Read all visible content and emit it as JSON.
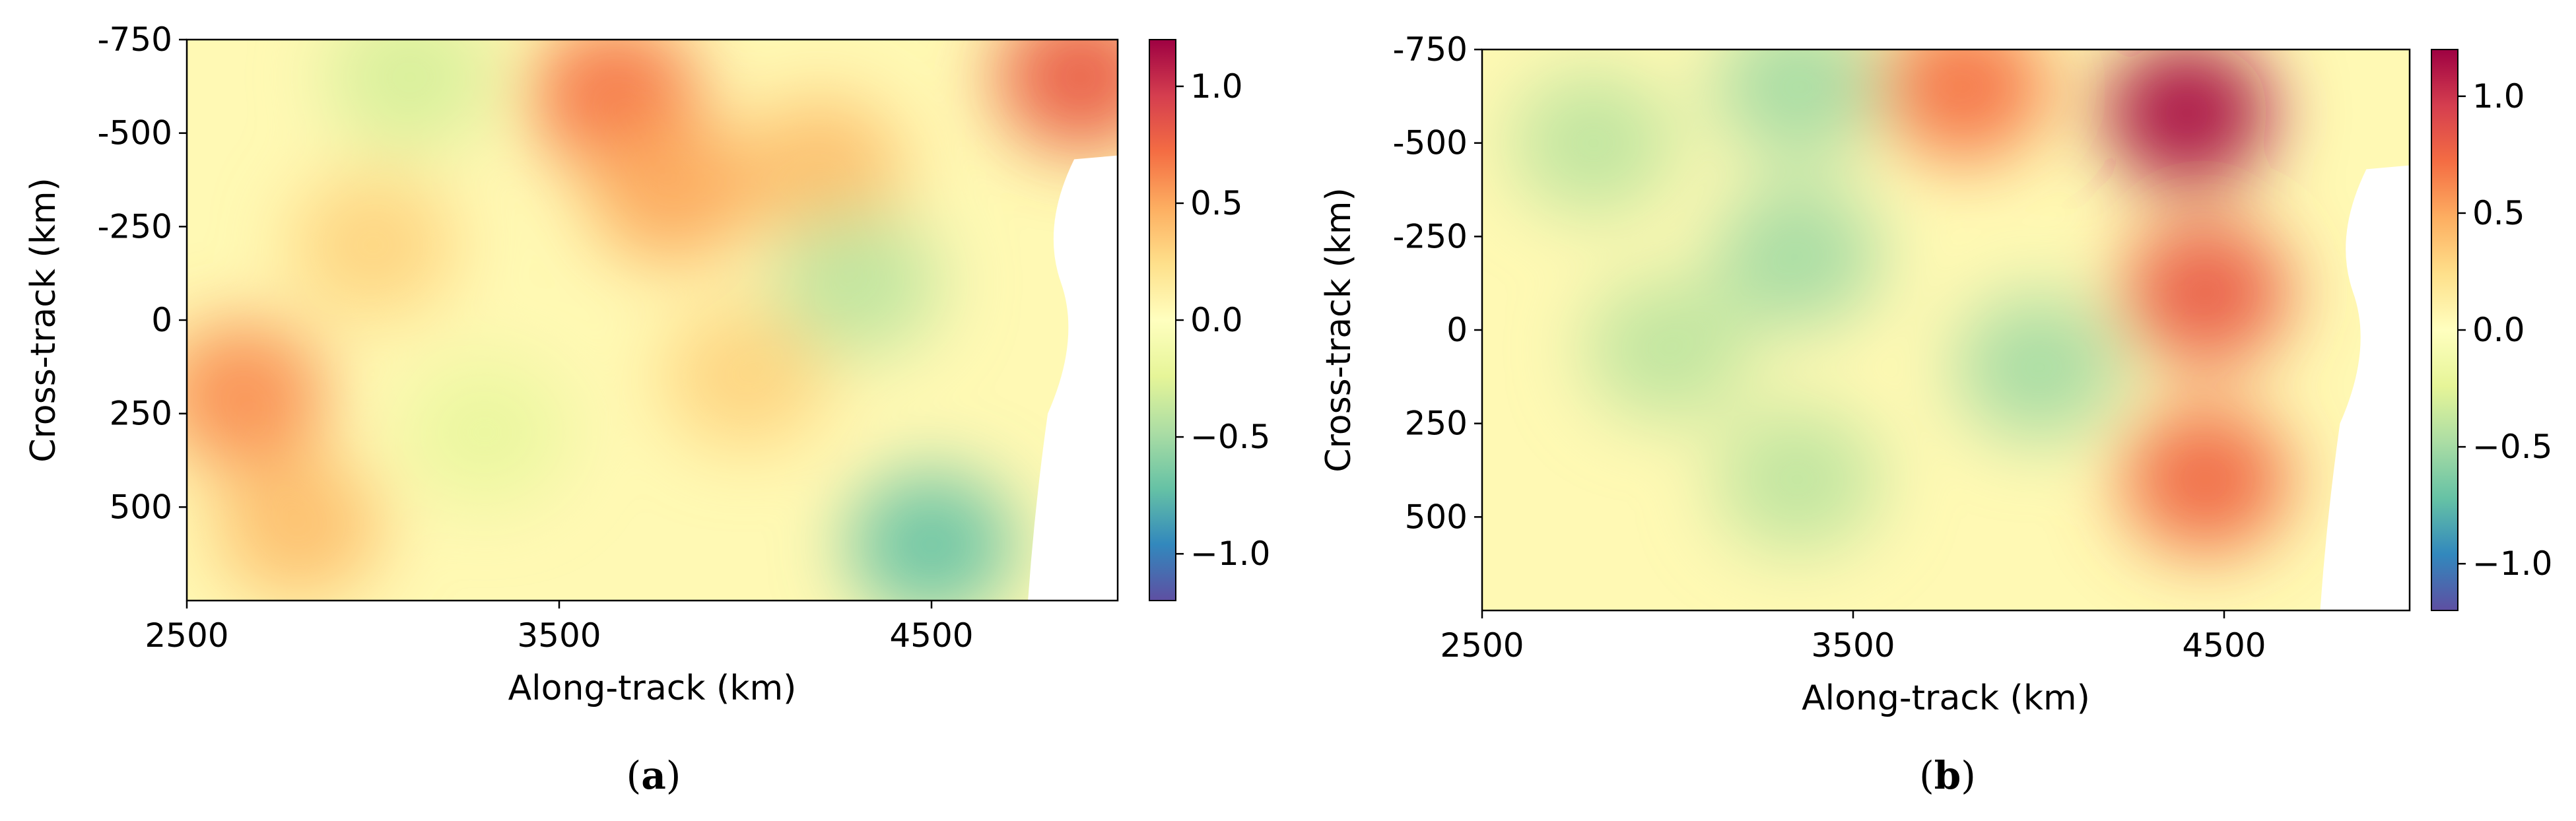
{
  "chart_data": [
    {
      "type": "heatmap",
      "caption": "(a)",
      "caption_letter": "a",
      "xlabel": "Along-track (km)",
      "ylabel": "Cross-track (km)",
      "xlim": [
        2500,
        5000
      ],
      "ylim": [
        -750,
        750
      ],
      "x_ticks": [
        2500,
        3500,
        4500
      ],
      "x_tick_labels": [
        "2500",
        "3500",
        "4500"
      ],
      "y_ticks": [
        -750,
        -500,
        -250,
        0,
        250,
        500
      ],
      "y_tick_labels": [
        "-750",
        "-500",
        "-250",
        "0",
        "250",
        "500"
      ],
      "colorbar": {
        "range": [
          -1.2,
          1.2
        ],
        "ticks": [
          1.0,
          0.5,
          0.0,
          -0.5,
          -1.0
        ],
        "tick_labels": [
          "1.0",
          "0.5",
          "0.0",
          "−0.5",
          "−1.0"
        ],
        "colormap": "Spectral_r"
      },
      "features": [
        {
          "x": 3650,
          "y": -600,
          "value": 0.7
        },
        {
          "x": 3800,
          "y": -350,
          "value": 0.5
        },
        {
          "x": 4200,
          "y": -400,
          "value": 0.4
        },
        {
          "x": 2650,
          "y": 200,
          "value": 0.6
        },
        {
          "x": 3000,
          "y": -200,
          "value": 0.3
        },
        {
          "x": 4000,
          "y": 150,
          "value": 0.3
        },
        {
          "x": 4300,
          "y": -100,
          "value": -0.4
        },
        {
          "x": 4500,
          "y": 600,
          "value": -0.7
        },
        {
          "x": 3100,
          "y": -650,
          "value": -0.3
        },
        {
          "x": 3300,
          "y": 300,
          "value": -0.2
        },
        {
          "x": 4900,
          "y": -650,
          "value": 0.8
        },
        {
          "x": 2800,
          "y": 550,
          "value": 0.4
        }
      ]
    },
    {
      "type": "heatmap",
      "caption": "(b)",
      "caption_letter": "b",
      "xlabel": "Along-track (km)",
      "ylabel": "Cross-track (km)",
      "xlim": [
        2500,
        5000
      ],
      "ylim": [
        -750,
        750
      ],
      "x_ticks": [
        2500,
        3500,
        4500
      ],
      "x_tick_labels": [
        "2500",
        "3500",
        "4500"
      ],
      "y_ticks": [
        -750,
        -500,
        -250,
        0,
        250,
        500
      ],
      "y_tick_labels": [
        "-750",
        "-500",
        "-250",
        "0",
        "250",
        "500"
      ],
      "colorbar": {
        "range": [
          -1.2,
          1.2
        ],
        "ticks": [
          1.0,
          0.5,
          0.0,
          -0.5,
          -1.0
        ],
        "tick_labels": [
          "1.0",
          "0.5",
          "0.0",
          "−0.5",
          "−1.0"
        ],
        "colormap": "Spectral_r"
      },
      "features": [
        {
          "x": 4400,
          "y": -580,
          "value": 1.15
        },
        {
          "x": 4450,
          "y": -100,
          "value": 0.8
        },
        {
          "x": 4450,
          "y": 400,
          "value": 0.75
        },
        {
          "x": 3800,
          "y": -650,
          "value": 0.7
        },
        {
          "x": 2800,
          "y": -500,
          "value": -0.4
        },
        {
          "x": 3350,
          "y": -200,
          "value": -0.5
        },
        {
          "x": 3000,
          "y": 50,
          "value": -0.4
        },
        {
          "x": 3350,
          "y": 400,
          "value": -0.4
        },
        {
          "x": 4000,
          "y": 100,
          "value": -0.5
        },
        {
          "x": 3350,
          "y": -650,
          "value": -0.5
        }
      ]
    }
  ]
}
